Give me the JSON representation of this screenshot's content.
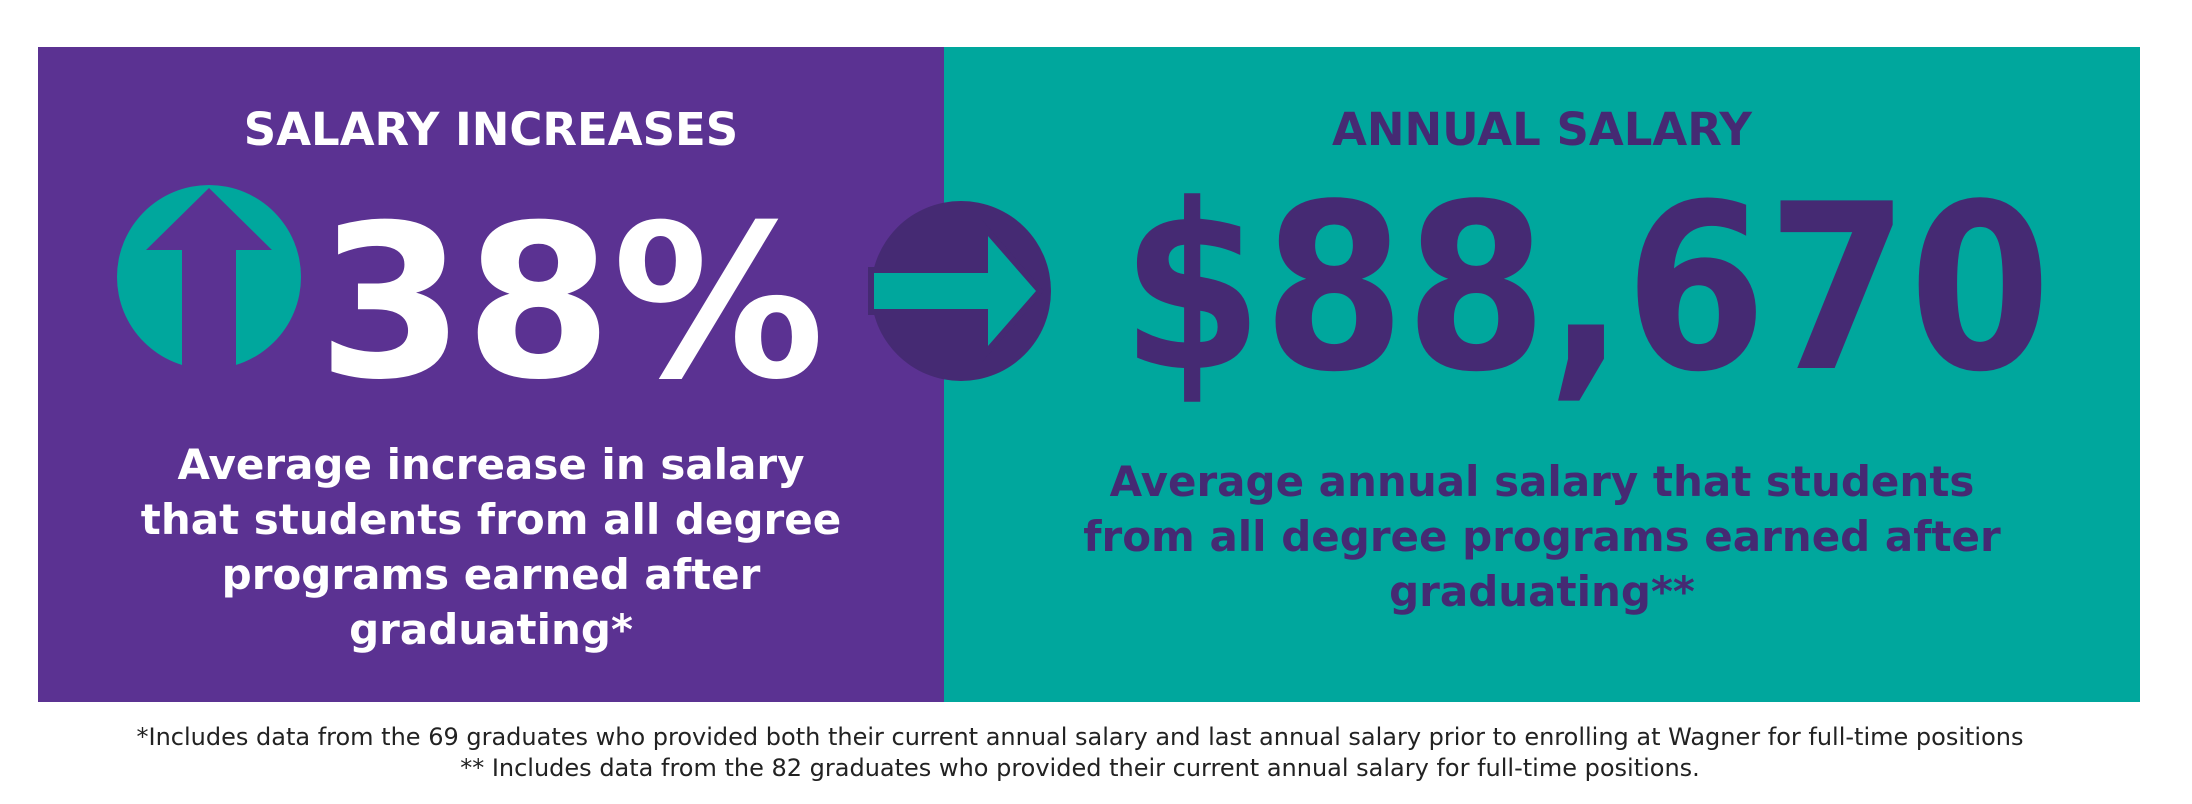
{
  "left": {
    "title": "SALARY INCREASES",
    "value": "38%",
    "description": [
      "Average increase in salary",
      "that students from all degree",
      "programs earned after",
      "graduating*"
    ]
  },
  "right": {
    "title": "ANNUAL SALARY",
    "value": "$88,670",
    "description": [
      "Average annual salary that students",
      "from all degree programs earned after",
      "graduating**"
    ]
  },
  "footnotes": [
    "*Includes data from the 69 graduates who provided both their current annual salary and last annual salary prior to enrolling at Wagner for full-time positions",
    "** Includes data from the 82 graduates who provided their current annual salary for full-time positions."
  ]
}
